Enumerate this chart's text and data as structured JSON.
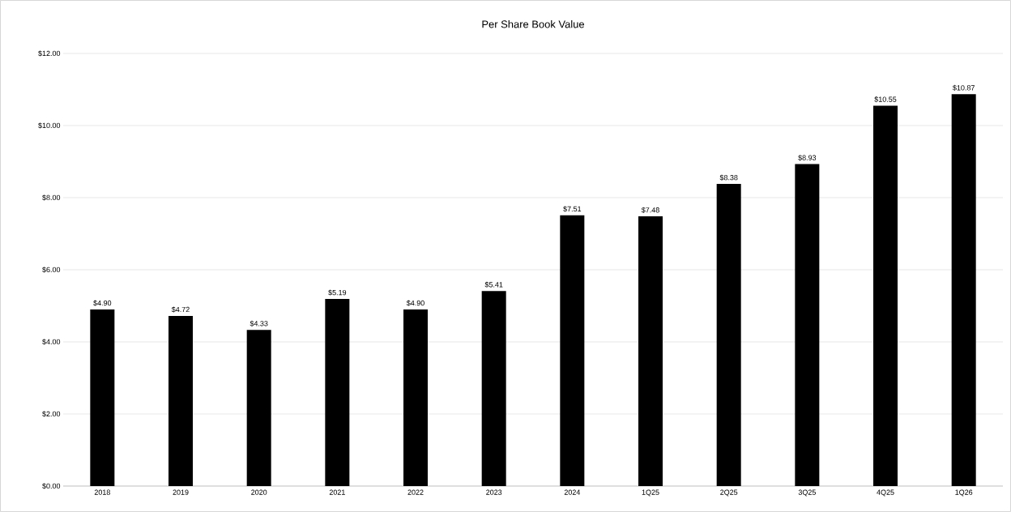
{
  "chart_data": {
    "type": "bar",
    "title": "Per Share Book Value",
    "categories": [
      "2018",
      "2019",
      "2020",
      "2021",
      "2022",
      "2023",
      "2024",
      "1Q25",
      "2Q25",
      "3Q25",
      "4Q25",
      "1Q26"
    ],
    "values": [
      4.9,
      4.72,
      4.33,
      5.19,
      4.9,
      5.41,
      7.51,
      7.48,
      8.38,
      8.93,
      10.55,
      10.87
    ],
    "value_labels": [
      "$4.90",
      "$4.72",
      "$4.33",
      "$5.19",
      "$4.90",
      "$5.41",
      "$7.51",
      "$7.48",
      "$8.38",
      "$8.93",
      "$10.55",
      "$10.87"
    ],
    "color": "#000000",
    "ylim": [
      0,
      12
    ],
    "yticks": [
      {
        "value": 0,
        "label": "$0.00"
      },
      {
        "value": 2,
        "label": "$2.00"
      },
      {
        "value": 4,
        "label": "$4.00"
      },
      {
        "value": 6,
        "label": "$6.00"
      },
      {
        "value": 8,
        "label": "$8.00"
      },
      {
        "value": 10,
        "label": "$10.00"
      },
      {
        "value": 12,
        "label": "$12.00"
      }
    ],
    "grid": "y"
  }
}
